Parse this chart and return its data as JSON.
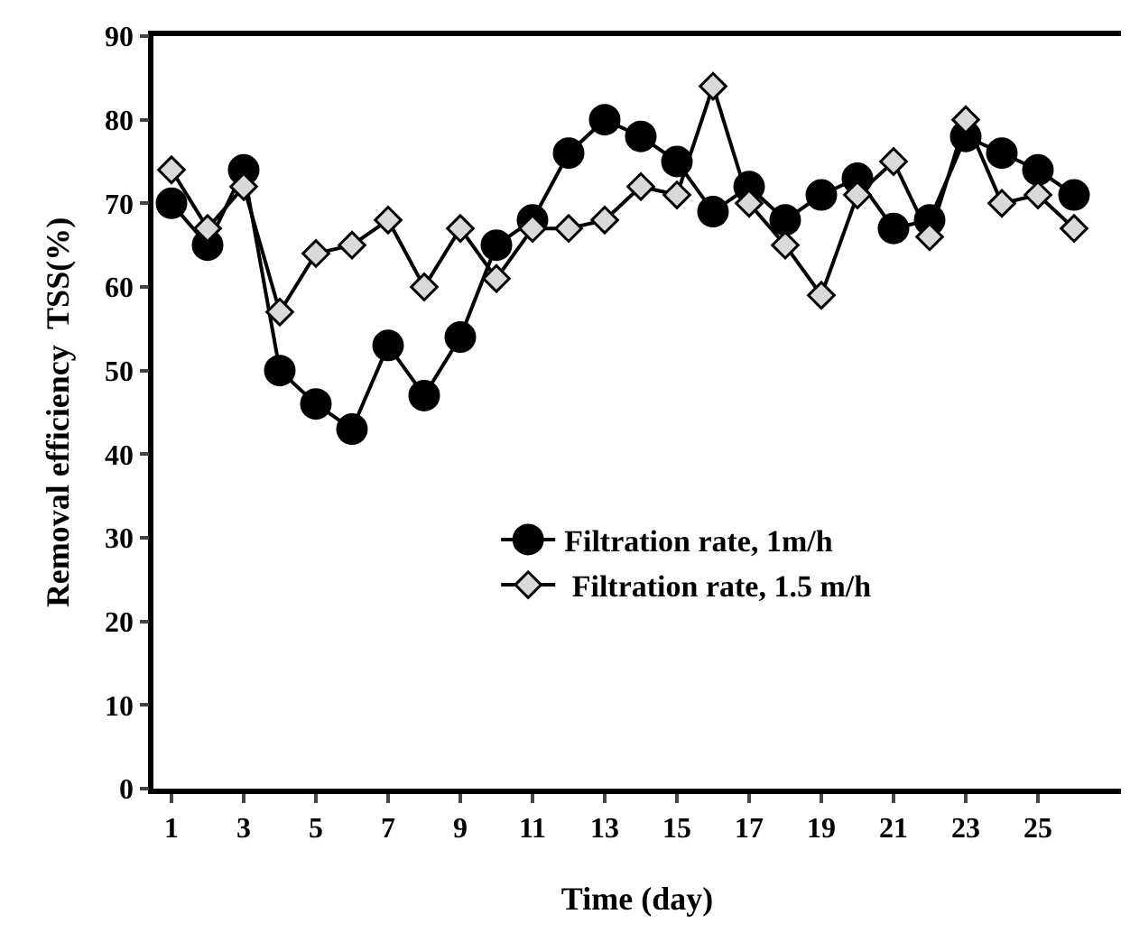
{
  "chart_data": {
    "type": "line",
    "xlabel": "Time (day)",
    "ylabel": "Removal efficiency  TSS(%)",
    "x": [
      1,
      2,
      3,
      4,
      5,
      6,
      7,
      8,
      9,
      10,
      11,
      12,
      13,
      14,
      15,
      16,
      17,
      18,
      19,
      20,
      21,
      22,
      23,
      24,
      25,
      26
    ],
    "series": [
      {
        "name": "Filtration rate, 1m/h",
        "color": "#000000",
        "marker": "circle",
        "values": [
          70,
          65,
          74,
          50,
          46,
          43,
          53,
          47,
          54,
          65,
          68,
          76,
          80,
          78,
          75,
          69,
          72,
          68,
          71,
          73,
          67,
          68,
          78,
          76,
          74,
          71
        ]
      },
      {
        "name": " Filtration rate, 1.5 m/h",
        "color": "#d9d9d9",
        "marker": "diamond",
        "values": [
          74,
          67,
          72,
          57,
          64,
          65,
          68,
          60,
          67,
          61,
          67,
          67,
          68,
          72,
          71,
          84,
          70,
          65,
          59,
          71,
          75,
          66,
          80,
          70,
          71,
          67
        ]
      }
    ],
    "xlim": [
      0.5,
      27.3
    ],
    "xticks": [
      1,
      3,
      5,
      7,
      9,
      11,
      13,
      15,
      17,
      19,
      21,
      23,
      25
    ],
    "ylim": [
      0,
      90
    ],
    "yticks": [
      0,
      10,
      20,
      30,
      40,
      50,
      60,
      70,
      80,
      90
    ],
    "legend": "center",
    "line_style": "solid"
  }
}
